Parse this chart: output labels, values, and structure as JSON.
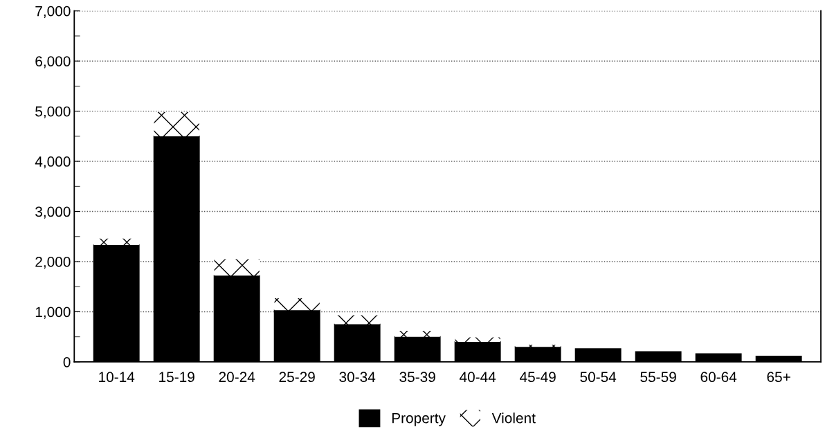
{
  "chart_data": {
    "type": "bar",
    "stacked": true,
    "categories": [
      "10-14",
      "15-19",
      "20-24",
      "25-29",
      "30-34",
      "35-39",
      "40-44",
      "45-49",
      "50-54",
      "55-59",
      "60-64",
      "65+"
    ],
    "series": [
      {
        "name": "Property",
        "color": "#000000",
        "values": [
          2330,
          4500,
          1720,
          1030,
          750,
          500,
          400,
          300,
          260,
          200,
          160,
          110
        ]
      },
      {
        "name": "Violent",
        "color": "#ffffff",
        "values": [
          130,
          480,
          330,
          240,
          180,
          120,
          90,
          40,
          null,
          null,
          null,
          null
        ]
      }
    ],
    "ylim": [
      0,
      7000
    ],
    "yticks": [
      {
        "value": 0,
        "label": "0"
      },
      {
        "value": 1000,
        "label": "1,000"
      },
      {
        "value": 2000,
        "label": "2,000"
      },
      {
        "value": 3000,
        "label": "3,000"
      },
      {
        "value": 4000,
        "label": "4,000"
      },
      {
        "value": 5000,
        "label": "5,000"
      },
      {
        "value": 6000,
        "label": "6,000"
      },
      {
        "value": 7000,
        "label": "7,000"
      }
    ],
    "grid": "y",
    "legend": "bottom"
  }
}
